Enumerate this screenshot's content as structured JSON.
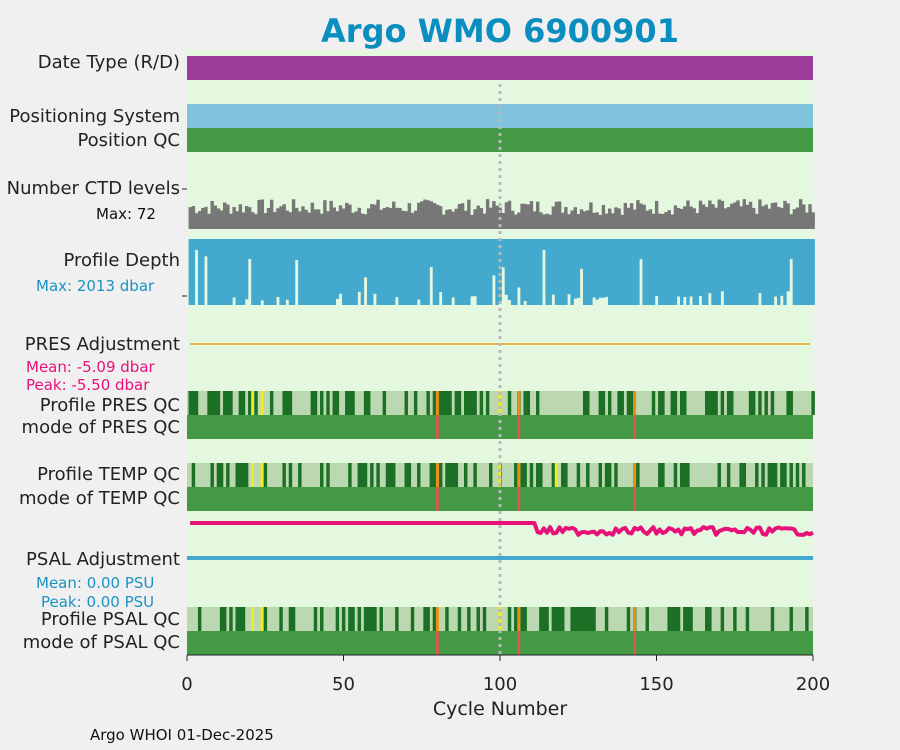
{
  "header": {
    "title": "Argo WMO 6900901",
    "title_color": "#0a8ec0"
  },
  "labels": {
    "date_type": "Date Type (R/D)",
    "positioning_system": "Positioning System",
    "position_qc": "Position QC",
    "ctd_levels": "Number CTD levels",
    "ctd_max": "Max: 72",
    "profile_depth": "Profile Depth",
    "depth_max": "Max: 2013 dbar",
    "pres_adjustment": "PRES Adjustment",
    "pres_mean": "Mean: -5.09 dbar",
    "pres_peak": "Peak: -5.50 dbar",
    "profile_pres_qc": "Profile PRES QC",
    "mode_pres_qc": "mode of PRES QC",
    "profile_temp_qc": "Profile TEMP QC",
    "mode_temp_qc": "mode of TEMP QC",
    "psal_adjustment": "PSAL Adjustment",
    "psal_mean": "Mean: 0.00 PSU",
    "psal_peak": "Peak: 0.00 PSU",
    "profile_psal_qc": "Profile PSAL QC",
    "mode_psal_qc": "mode of PSAL QC"
  },
  "footer": "Argo WHOI 01-Dec-2025",
  "colors": {
    "panel_bg": "#e4f8e0",
    "date_type": "#9b3c98",
    "positioning": "#7fc3dd",
    "position_qc": "#449a44",
    "ctd": "#777777",
    "depth": "#43a9ce",
    "pres_adj": "#e6b64a",
    "qc_light": "#bcd8b0",
    "qc_dark": "#1c7025",
    "qc_mode": "#449a44",
    "qc_yellow": "#f2ea22",
    "qc_orange": "#ee8c14",
    "qc_red": "#d85c4a",
    "pink": "#e8117a",
    "psal_adj": "#43a9ce",
    "stat_pink": "#e8117a",
    "stat_blue": "#1a93c4"
  },
  "chart_data": {
    "type": "table",
    "xlabel": "Cycle Number",
    "xlim": [
      0,
      200
    ],
    "xticks": [
      "0",
      "50",
      "100",
      "150",
      "200"
    ],
    "reference_cycle": 100,
    "rows": [
      {
        "name": "Date Type (R/D)",
        "value": "D"
      },
      {
        "name": "Positioning System",
        "value": "uniform"
      },
      {
        "name": "Position QC",
        "value": "good"
      },
      {
        "name": "Number CTD levels",
        "max": 72
      },
      {
        "name": "Profile Depth",
        "max_dbar": 2013
      },
      {
        "name": "PRES Adjustment",
        "mean_dbar": -5.09,
        "peak_dbar": -5.5
      },
      {
        "name": "PSAL Adjustment",
        "mean_psu": 0.0,
        "peak_psu": 0.0
      }
    ],
    "qc_yellow_cycles": [
      21,
      24,
      100,
      118
    ],
    "qc_orange_cycles": [
      80,
      106,
      143
    ],
    "qc_red_cycles": [
      80,
      106,
      143
    ],
    "depth_shallow_cycles": [
      3,
      6,
      20,
      35,
      57,
      78,
      98,
      101,
      106,
      114,
      126,
      145,
      193
    ],
    "series_shift_cycle": 111
  }
}
